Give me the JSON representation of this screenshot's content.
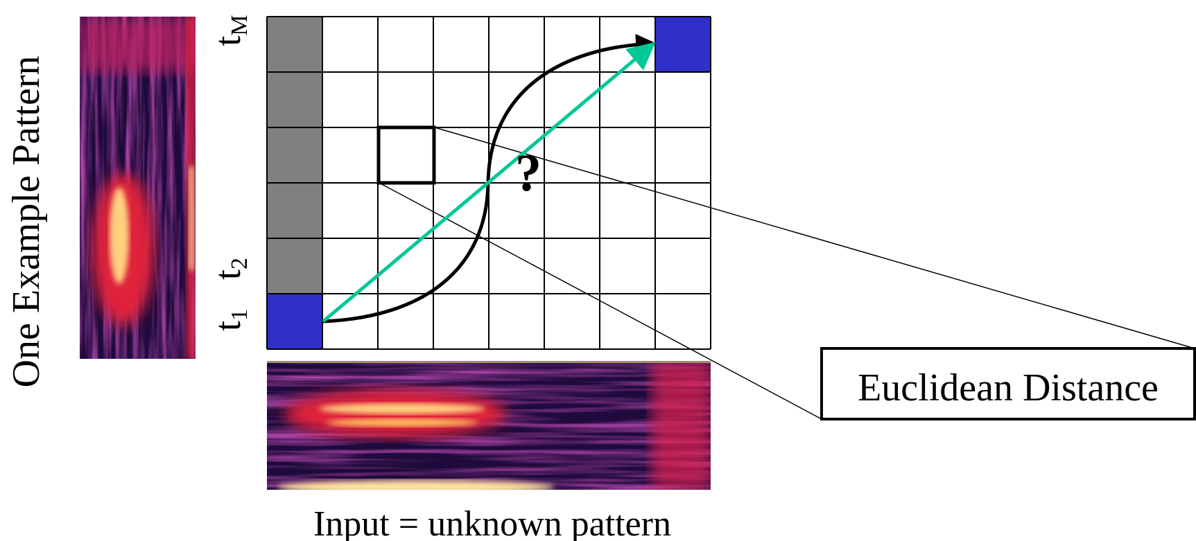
{
  "y_axis_label": "One Example Pattern",
  "time_labels": [
    {
      "base": "t",
      "sub": "M"
    },
    {
      "base": "t",
      "sub": "2"
    },
    {
      "base": "t",
      "sub": "1"
    }
  ],
  "question_mark": "?",
  "distance_label": "Euclidean Distance",
  "x_axis_label": "Input = unknown pattern"
}
